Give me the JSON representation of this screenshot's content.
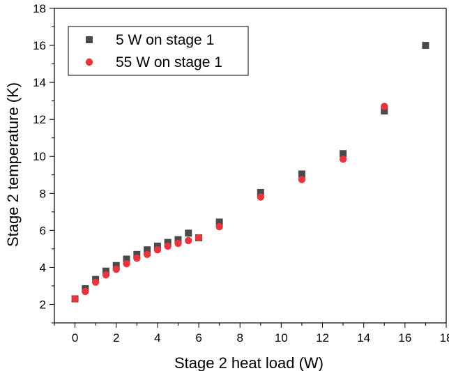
{
  "chart_data": {
    "type": "scatter",
    "title": "",
    "xlabel": "Stage 2 heat load (W)",
    "ylabel": "Stage 2 temperature (K)",
    "xlim": [
      -1,
      18
    ],
    "ylim": [
      1,
      18
    ],
    "xticks": [
      0,
      2,
      4,
      6,
      8,
      10,
      12,
      14,
      16,
      18
    ],
    "yticks": [
      2,
      4,
      6,
      8,
      10,
      12,
      14,
      16,
      18
    ],
    "grid": false,
    "legend_position": "top-left",
    "series": [
      {
        "name": "5 W on stage 1",
        "marker": "square",
        "color": "#4a4a4a",
        "x": [
          0,
          0.5,
          1,
          1.5,
          2,
          2.5,
          3,
          3.5,
          4,
          4.5,
          5,
          5.5,
          6,
          7,
          9,
          11,
          13,
          15,
          17
        ],
        "y": [
          2.3,
          2.85,
          3.35,
          3.8,
          4.1,
          4.45,
          4.7,
          4.95,
          5.15,
          5.35,
          5.5,
          5.85,
          5.6,
          6.45,
          8.05,
          9.05,
          10.15,
          12.45,
          16.0
        ]
      },
      {
        "name": "55 W on stage 1",
        "marker": "circle",
        "color": "#e8353b",
        "x": [
          0,
          0.5,
          1,
          1.5,
          2,
          2.5,
          3,
          3.5,
          4,
          4.5,
          5,
          5.5,
          6,
          7,
          9,
          11,
          13,
          15
        ],
        "y": [
          2.3,
          2.7,
          3.2,
          3.6,
          3.9,
          4.2,
          4.5,
          4.7,
          4.95,
          5.15,
          5.3,
          5.45,
          5.6,
          6.2,
          7.8,
          8.75,
          9.85,
          12.7
        ]
      }
    ]
  }
}
